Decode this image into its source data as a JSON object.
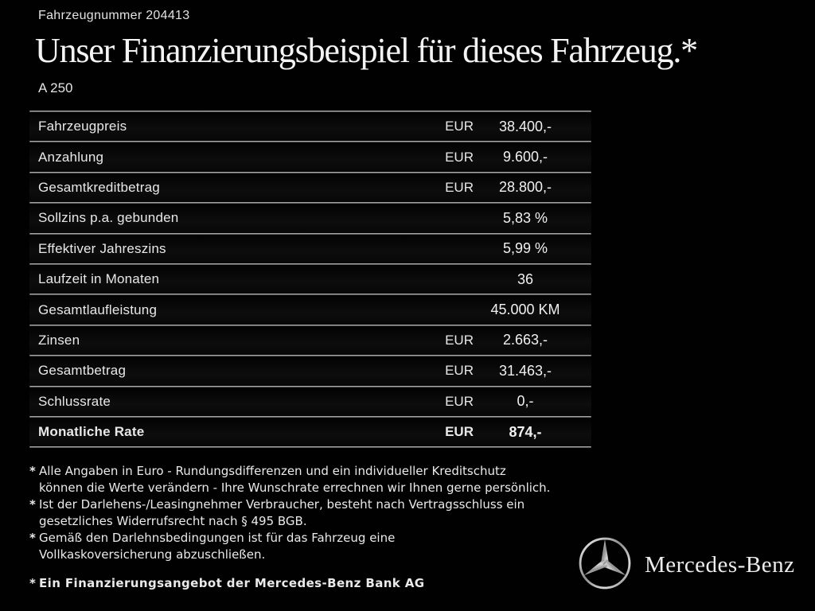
{
  "header": {
    "vehicle_number": "Fahrzeugnummer 204413",
    "title": "Unser Finanzierungsbeispiel für dieses Fahrzeug.*",
    "model": "A 250"
  },
  "table": {
    "rows": [
      {
        "label": "Fahrzeugpreis",
        "currency": "EUR",
        "value": "38.400,-",
        "bold": false
      },
      {
        "label": "Anzahlung",
        "currency": "EUR",
        "value": "9.600,-",
        "bold": false
      },
      {
        "label": "Gesamtkreditbetrag",
        "currency": "EUR",
        "value": "28.800,-",
        "bold": false
      },
      {
        "label": "Sollzins p.a. gebunden",
        "currency": "",
        "value": "5,83 %",
        "bold": false
      },
      {
        "label": "Effektiver Jahreszins",
        "currency": "",
        "value": "5,99 %",
        "bold": false
      },
      {
        "label": "Laufzeit in Monaten",
        "currency": "",
        "value": "36",
        "bold": false
      },
      {
        "label": "Gesamtlaufleistung",
        "currency": "",
        "value": "45.000 KM",
        "bold": false
      },
      {
        "label": "Zinsen",
        "currency": "EUR",
        "value": "2.663,-",
        "bold": false
      },
      {
        "label": "Gesamtbetrag",
        "currency": "EUR",
        "value": "31.463,-",
        "bold": false
      },
      {
        "label": "Schlussrate",
        "currency": "EUR",
        "value": "0,-",
        "bold": false
      },
      {
        "label": "Monatliche Rate",
        "currency": "EUR",
        "value": "874,-",
        "bold": true
      }
    ]
  },
  "footnote_marker": "*",
  "footnotes": [
    {
      "bold": false,
      "lines": [
        "Alle Angaben in Euro - Rundungsdifferenzen und ein individueller Kreditschutz",
        "können die Werte verändern - Ihre Wunschrate errechnen wir Ihnen gerne persönlich."
      ]
    },
    {
      "bold": false,
      "lines": [
        "Ist der Darlehens-/Leasingnehmer Verbraucher, besteht nach Vertragsschluss ein",
        "gesetzliches Widerrufsrecht nach § 495 BGB."
      ]
    },
    {
      "bold": false,
      "lines": [
        "Gemäß den Darlehnsbedingungen ist für das Fahrzeug eine",
        "Vollkaskoversicherung abzuschließen."
      ]
    },
    {
      "bold": true,
      "lines": [
        "Ein Finanzierungsangebot der Mercedes-Benz Bank AG"
      ]
    }
  ],
  "brand": {
    "wordmark": "Mercedes-Benz",
    "logo_icon": "mercedes-star-icon"
  },
  "colors": {
    "background": "#000000",
    "text": "#ececec",
    "separator": "#9a9a9a"
  }
}
